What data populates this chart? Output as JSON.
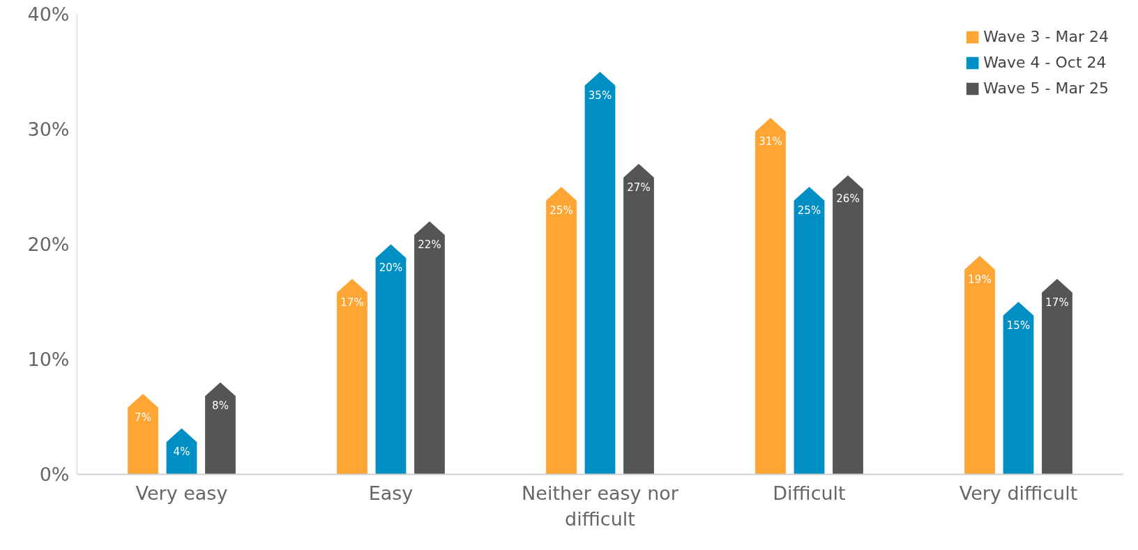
{
  "chart_data": {
    "type": "bar",
    "categories": [
      "Very easy",
      "Easy",
      "Neither easy nor difficult",
      "Difficult",
      "Very difficult"
    ],
    "series": [
      {
        "name": "Wave 3 - Mar 24",
        "color": "#ffa533",
        "values": [
          7,
          17,
          25,
          31,
          19
        ],
        "value_labels": [
          "7%",
          "17%",
          "25%",
          "31%",
          "19%"
        ]
      },
      {
        "name": "Wave 4 - Oct 24",
        "color": "#008fc5",
        "values": [
          4,
          20,
          35,
          25,
          15
        ],
        "value_labels": [
          "4%",
          "20%",
          "35%",
          "25%",
          "15%"
        ]
      },
      {
        "name": "Wave 5 - Mar 25",
        "color": "#555555",
        "values": [
          8,
          22,
          27,
          26,
          17
        ],
        "value_labels": [
          "8%",
          "22%",
          "27%",
          "26%",
          "17%"
        ]
      }
    ],
    "ylim": [
      0,
      40
    ],
    "yticks": [
      {
        "value": 0,
        "label": "0%"
      },
      {
        "value": 10,
        "label": "10%"
      },
      {
        "value": 20,
        "label": "20%"
      },
      {
        "value": 30,
        "label": "30%"
      },
      {
        "value": 40,
        "label": "40%"
      }
    ],
    "legend": "top right",
    "grid": false
  }
}
